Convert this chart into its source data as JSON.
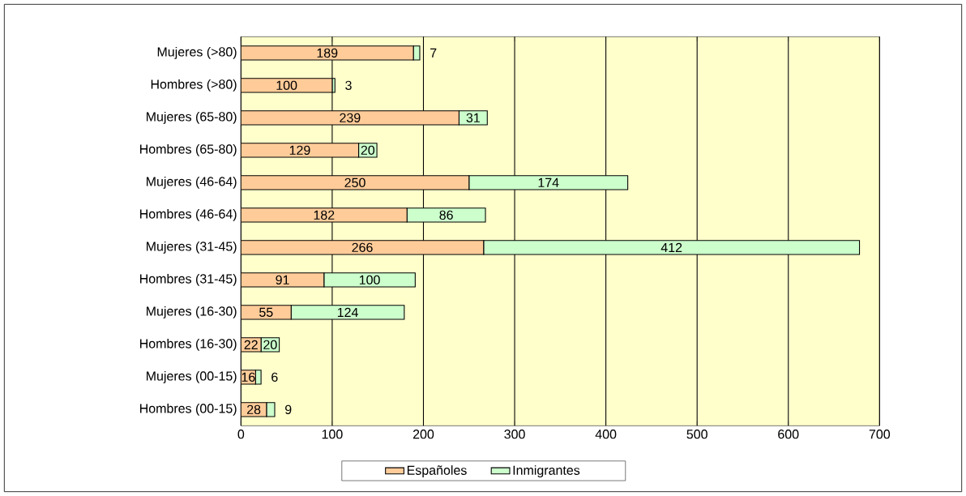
{
  "chart_data": {
    "type": "bar",
    "orientation": "horizontal",
    "stacked": true,
    "data_labels": true,
    "grid": "x",
    "legend": "bottom",
    "categories": [
      "Mujeres (>80)",
      "Hombres (>80)",
      "Mujeres (65-80)",
      "Hombres (65-80)",
      "Mujeres (46-64)",
      "Hombres (46-64)",
      "Mujeres (31-45)",
      "Hombres (31-45)",
      "Mujeres (16-30)",
      "Hombres (16-30)",
      "Mujeres (00-15)",
      "Hombres (00-15)"
    ],
    "series": [
      {
        "name": "Españoles",
        "color": "#ffcc99",
        "values": [
          189,
          100,
          239,
          129,
          250,
          182,
          266,
          91,
          55,
          22,
          16,
          28
        ]
      },
      {
        "name": "Inmigrantes",
        "color": "#ccffcc",
        "values": [
          7,
          3,
          31,
          20,
          174,
          86,
          412,
          100,
          124,
          20,
          6,
          9
        ]
      }
    ],
    "xlim": [
      0,
      700
    ],
    "xticks": [
      0,
      100,
      200,
      300,
      400,
      500,
      600,
      700
    ]
  }
}
